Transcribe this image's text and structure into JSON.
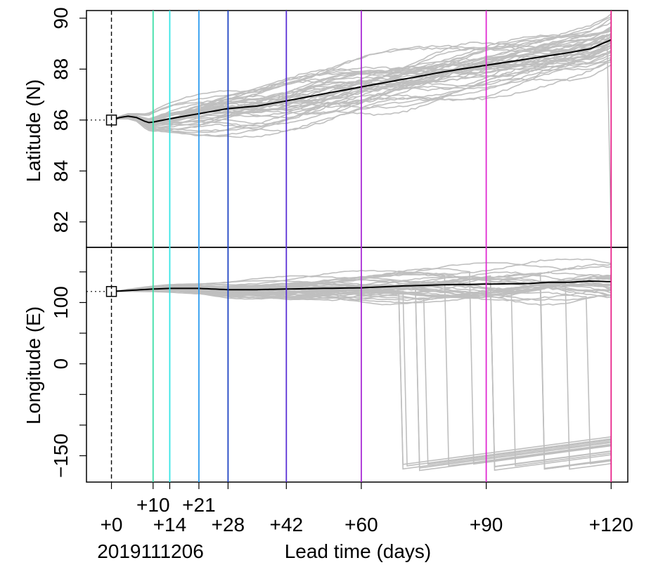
{
  "chart_data": {
    "type": "line",
    "xlabel": "Lead time (days)",
    "init_label": "2019111206",
    "x_ticks_lower": [
      0,
      14,
      28,
      42,
      60,
      90,
      120
    ],
    "x_ticks_upper": [
      10,
      21
    ],
    "x_tick_labels_lower": [
      "+0",
      "+14",
      "+28",
      "+42",
      "+60",
      "+90",
      "+120"
    ],
    "x_tick_labels_upper": [
      "+10",
      "+21"
    ],
    "xlim": [
      -6,
      124
    ],
    "vlines": [
      {
        "x": 0,
        "color": "#000000",
        "dashed": true
      },
      {
        "x": 10,
        "color": "#3ddfa8",
        "dashed": false
      },
      {
        "x": 14,
        "color": "#35e6e6",
        "dashed": false
      },
      {
        "x": 21,
        "color": "#2f9df0",
        "dashed": false
      },
      {
        "x": 28,
        "color": "#1f44c4",
        "dashed": false
      },
      {
        "x": 42,
        "color": "#5a2fd6",
        "dashed": false
      },
      {
        "x": 60,
        "color": "#a82bd6",
        "dashed": false
      },
      {
        "x": 90,
        "color": "#e02ad2",
        "dashed": false
      },
      {
        "x": 120,
        "color": "#e8238a",
        "dashed": false
      }
    ],
    "colors": {
      "ensemble": "#bfbfbf",
      "mean": "#000000"
    },
    "panels": [
      {
        "ylabel": "Latitude (N)",
        "ylim": [
          81,
          90.3
        ],
        "yticks": [
          82,
          84,
          86,
          88,
          90
        ],
        "ytick_labels": [
          "82",
          "84",
          "86",
          "88",
          "90"
        ],
        "initial": {
          "x": 0,
          "y": 86.0
        },
        "mean": {
          "x": [
            0,
            2,
            4,
            6,
            8,
            9,
            10,
            14,
            21,
            28,
            35,
            42,
            50,
            60,
            70,
            80,
            90,
            100,
            110,
            115,
            120
          ],
          "y": [
            86.0,
            86.1,
            86.15,
            86.1,
            85.95,
            85.9,
            85.92,
            86.05,
            86.25,
            86.45,
            86.55,
            86.75,
            87.0,
            87.3,
            87.6,
            87.9,
            88.15,
            88.4,
            88.65,
            88.8,
            89.15
          ]
        },
        "ensemble_spread": {
          "x": [
            0,
            6,
            10,
            14,
            21,
            28,
            42,
            60,
            90,
            120
          ],
          "low": [
            86.0,
            85.9,
            85.5,
            85.3,
            85.1,
            85.1,
            85.3,
            85.6,
            86.3,
            86.8
          ],
          "high": [
            86.0,
            86.3,
            86.6,
            86.9,
            87.3,
            87.6,
            88.2,
            88.8,
            89.3,
            89.4
          ]
        },
        "outlier_end": {
          "x": 120,
          "y": 81.5
        }
      },
      {
        "ylabel": "Longitude (E)",
        "ylim": [
          -193,
          190
        ],
        "yticks": [
          -150,
          0,
          100
        ],
        "ytick_labels": [
          "−150",
          "0",
          "100"
        ],
        "initial": {
          "x": 0,
          "y": 118
        },
        "mean": {
          "x": [
            0,
            5,
            10,
            14,
            21,
            28,
            35,
            42,
            50,
            60,
            70,
            80,
            90,
            100,
            105,
            110,
            115,
            120
          ],
          "y": [
            118,
            120,
            122,
            123,
            123,
            121,
            121,
            122,
            123,
            124,
            127,
            129,
            130,
            131,
            133,
            133,
            135,
            134
          ]
        },
        "ensemble_spread": {
          "x": [
            0,
            10,
            21,
            42,
            60,
            90,
            120
          ],
          "low": [
            118,
            115,
            108,
            95,
            92,
            85,
            75
          ],
          "high": [
            118,
            128,
            135,
            150,
            165,
            175,
            178
          ]
        },
        "wrap_low": -175
      }
    ]
  }
}
